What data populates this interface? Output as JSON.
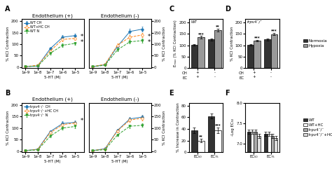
{
  "chart_data": [
    {
      "type": "line",
      "panel_label": "A",
      "title": "Endothelium (+)",
      "x_label": "5-HT (M)",
      "y_label": "% KCI Contraction",
      "log": "x",
      "x": [
        1e-09,
        1e-08,
        1e-07,
        1e-06,
        1e-05
      ],
      "xlim": [
        5e-10,
        5e-05
      ],
      "xticks": [
        {
          "value": 1e-09,
          "label": "1e-9"
        },
        {
          "value": 1e-08,
          "label": "1e-8"
        },
        {
          "value": 1e-07,
          "label": "1e-7"
        },
        {
          "value": 1e-06,
          "label": "1e-6"
        },
        {
          "value": 1e-05,
          "label": "1e-5"
        }
      ],
      "ylim": [
        -5,
        210
      ],
      "yticks": [
        0,
        50,
        100,
        150,
        200
      ],
      "legend": "upper left",
      "annotations": [
        "*",
        "*"
      ],
      "series": [
        {
          "name": "WT CH",
          "marker": "circle",
          "line_style": "solid",
          "values": [
            2,
            5,
            80,
            130,
            137
          ],
          "errors": [
            1.12,
            1.3,
            5.8,
            8.8,
            9.22
          ]
        },
        {
          "name": "WT+HC CH",
          "marker": "open_circle",
          "line_style": "dashed",
          "values": [
            2,
            8,
            70,
            120,
            125
          ],
          "errors": [
            1.12,
            1.48,
            5.2,
            8.2,
            8.5
          ]
        },
        {
          "name": "WT N",
          "marker": "triangle_down",
          "line_style": "dashed",
          "values": [
            2,
            4,
            60,
            95,
            103
          ],
          "errors": [
            1.12,
            1.24,
            4.6,
            6.7,
            7.18
          ]
        }
      ]
    },
    {
      "type": "line",
      "title": "Endothelium (-)",
      "x_label": "5-HT (M)",
      "y_label": "% KCI Contraction",
      "log": "x",
      "x": [
        1e-09,
        1e-08,
        1e-07,
        1e-06,
        1e-05
      ],
      "xlim": [
        5e-10,
        5e-05
      ],
      "xticks": [
        {
          "value": 1e-09,
          "label": "1e-9"
        },
        {
          "value": 1e-08,
          "label": "1e-8"
        },
        {
          "value": 1e-07,
          "label": "1e-7"
        },
        {
          "value": 1e-06,
          "label": "1e-6"
        },
        {
          "value": 1e-05,
          "label": "1e-5"
        }
      ],
      "ylim": [
        -5,
        210
      ],
      "yticks": [
        0,
        50,
        100,
        150,
        200
      ],
      "annotations": [
        "*",
        "*"
      ],
      "series": [
        {
          "name": "WT CH",
          "marker": "circle",
          "line_style": "solid",
          "values": [
            2,
            10,
            90,
            155,
            165
          ],
          "errors": [
            1.12,
            1.6,
            6.4,
            10.3,
            10.9
          ]
        },
        {
          "name": "WT+HC CH",
          "marker": "open_circle",
          "line_style": "dashed",
          "values": [
            2,
            12,
            95,
            130,
            140
          ],
          "errors": [
            1.12,
            1.72,
            6.7,
            8.8,
            9.4
          ]
        },
        {
          "name": "WT N",
          "marker": "triangle_down",
          "line_style": "dashed",
          "values": [
            2,
            8,
            75,
            110,
            115
          ],
          "errors": [
            1.12,
            1.48,
            5.5,
            7.6,
            7.9
          ]
        }
      ]
    },
    {
      "type": "line",
      "panel_label": "B",
      "title": "Endothelium (+)",
      "x_label": "5-HT (M)",
      "y_label": "% KCI Contraction",
      "log": "x",
      "x": [
        1e-09,
        1e-08,
        1e-07,
        1e-06,
        1e-05
      ],
      "xlim": [
        5e-10,
        5e-05
      ],
      "xticks": [
        {
          "value": 1e-09,
          "label": "1e-9"
        },
        {
          "value": 1e-08,
          "label": "1e-8"
        },
        {
          "value": 1e-07,
          "label": "1e-7"
        },
        {
          "value": 1e-06,
          "label": "1e-6"
        },
        {
          "value": 1e-05,
          "label": "1e-5"
        }
      ],
      "ylim": [
        -5,
        210
      ],
      "yticks": [
        0,
        50,
        100,
        150,
        200
      ],
      "legend": "upper left",
      "annotations": [
        "*"
      ],
      "series": [
        {
          "name": "trpv4⁻/⁻ CH",
          "marker": "circle",
          "line_style": "solid",
          "values": [
            2,
            8,
            85,
            120,
            125
          ],
          "errors": [
            1.12,
            1.48,
            6.1,
            8.2,
            8.5
          ]
        },
        {
          "name": "trpv4⁻/⁻+HC CH",
          "marker": "open_circle",
          "line_style": "dashed",
          "values": [
            2,
            7,
            80,
            115,
            122
          ],
          "errors": [
            1.12,
            1.42,
            5.8,
            7.9,
            8.32
          ]
        },
        {
          "name": "trpv4⁻/⁻ N",
          "marker": "triangle_down",
          "line_style": "dashed",
          "values": [
            2,
            5,
            65,
            100,
            107
          ],
          "errors": [
            1.12,
            1.3,
            4.9,
            7.0,
            7.42
          ]
        }
      ]
    },
    {
      "type": "line",
      "title": "Endothelium (-)",
      "x_label": "5-HT (M)",
      "y_label": "% KCI Contraction",
      "log": "x",
      "x": [
        1e-09,
        1e-08,
        1e-07,
        1e-06,
        1e-05
      ],
      "xlim": [
        5e-10,
        5e-05
      ],
      "xticks": [
        {
          "value": 1e-09,
          "label": "1e-9"
        },
        {
          "value": 1e-08,
          "label": "1e-8"
        },
        {
          "value": 1e-07,
          "label": "1e-7"
        },
        {
          "value": 1e-06,
          "label": "1e-6"
        },
        {
          "value": 1e-05,
          "label": "1e-5"
        }
      ],
      "ylim": [
        -5,
        210
      ],
      "yticks": [
        0,
        50,
        100,
        150,
        200
      ],
      "series": [
        {
          "name": "trpv4⁻/⁻ CH",
          "marker": "circle",
          "line_style": "solid",
          "values": [
            2,
            10,
            90,
            140,
            148
          ],
          "errors": [
            1.12,
            1.6,
            6.4,
            9.4,
            9.88
          ]
        },
        {
          "name": "trpv4⁻/⁻+HC CH",
          "marker": "open_circle",
          "line_style": "dashed",
          "values": [
            2,
            9,
            88,
            135,
            143
          ],
          "errors": [
            1.12,
            1.54,
            6.28,
            9.1,
            9.58
          ]
        },
        {
          "name": "trpv4⁻/⁻ N",
          "marker": "triangle_down",
          "line_style": "dashed",
          "values": [
            2,
            6,
            70,
            108,
            112
          ],
          "errors": [
            1.12,
            1.36,
            5.2,
            7.48,
            7.72
          ]
        }
      ]
    },
    {
      "type": "bar",
      "panel_label": "C",
      "y_label": "Eₘₐₓ (% KCI Contraction)",
      "categories": [
        "+\n+",
        "-\n-"
      ],
      "row_labels": [
        "CH",
        "EC"
      ],
      "annotations": [
        "WT"
      ],
      "ylim": [
        0,
        215
      ],
      "yticks": [
        0,
        50,
        100,
        150,
        200
      ],
      "series": [
        {
          "name": "Normoxia",
          "color": "#333333",
          "values": [
            103,
            125
          ],
          "errors": [
            3,
            4
          ]
        },
        {
          "name": "Hypoxia",
          "color": "#999999",
          "values": [
            135,
            165
          ],
          "errors": [
            5,
            6
          ],
          "significance": [
            "***",
            "**"
          ]
        }
      ]
    },
    {
      "type": "bar",
      "panel_label": "D",
      "y_label": "% KCI Contraction",
      "categories": [
        "+\n+",
        "-\n-"
      ],
      "row_labels": [
        "CH",
        "EC"
      ],
      "annotations": [
        "trpv4⁻/⁻"
      ],
      "ylim": [
        0,
        215
      ],
      "yticks": [
        0,
        50,
        100,
        150,
        200
      ],
      "legend": "center left",
      "series": [
        {
          "name": "Normoxia",
          "color": "#333333",
          "values": [
            103,
            125
          ],
          "errors": [
            3,
            4
          ]
        },
        {
          "name": "Hypoxia",
          "color": "#999999",
          "values": [
            120,
            148
          ],
          "errors": [
            4,
            5
          ],
          "significance": [
            "***",
            "***"
          ]
        }
      ]
    },
    {
      "type": "bar",
      "panel_label": "E",
      "y_label": "% Increase in Contraction",
      "categories": [
        "EC₅₀",
        "EC₇₅"
      ],
      "ylim": [
        0,
        85
      ],
      "yticks": [
        0,
        20,
        40,
        60,
        80
      ],
      "series": [
        {
          "name": "WT",
          "color": "#333333",
          "values": [
            38,
            62
          ],
          "errors": [
            5,
            4
          ]
        },
        {
          "name": "WT+HC",
          "color": "#ffffff",
          "values": [
            20,
            38
          ],
          "errors": [
            3,
            5
          ],
          "significance": [
            "**",
            "***"
          ]
        }
      ]
    },
    {
      "type": "bar",
      "panel_label": "F",
      "y_label": "-Log EC₅₀",
      "categories": [
        "EC₅₀",
        "EC₇₅"
      ],
      "ylim": [
        6.8,
        8.0
      ],
      "yticks": [
        7.0,
        7.5,
        8.0
      ],
      "legend": "center left",
      "series": [
        {
          "name": "WT",
          "color": "#333333",
          "values": [
            7.3,
            7.25
          ],
          "errors": [
            0.05,
            0.05
          ]
        },
        {
          "name": "WT+HC",
          "color": "#ffffff",
          "values": [
            7.3,
            7.25
          ],
          "errors": [
            0.05,
            0.05
          ]
        },
        {
          "name": "trpv4⁻/⁻",
          "color": "#aaaaaa",
          "values": [
            7.3,
            7.2
          ],
          "errors": [
            0.05,
            0.05
          ]
        },
        {
          "name": "trpv4⁻/⁻+HC",
          "color": "#dddddd",
          "values": [
            7.2,
            7.15
          ],
          "errors": [
            0.05,
            0.05
          ]
        }
      ]
    }
  ]
}
